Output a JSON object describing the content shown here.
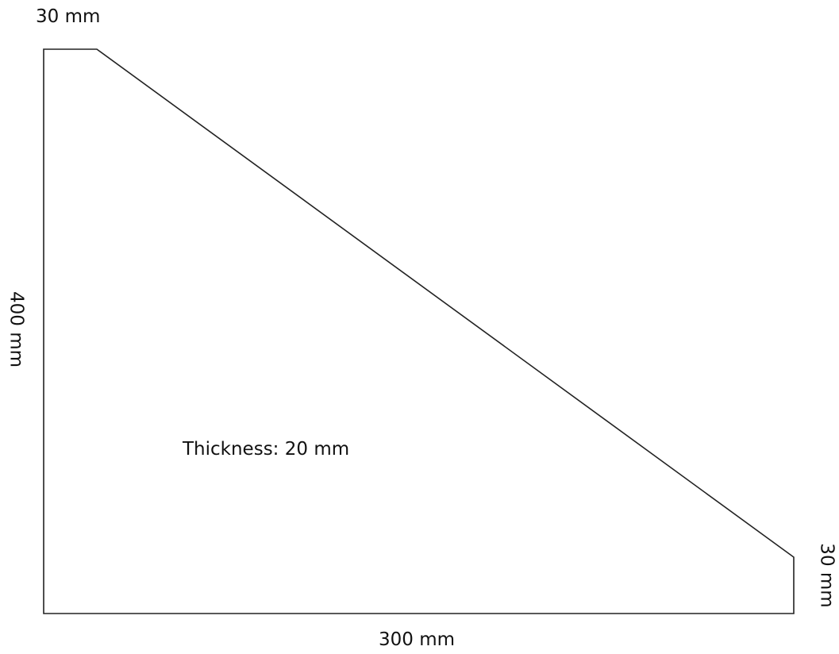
{
  "labels": {
    "top_width": "30 mm",
    "height": "400 mm",
    "base_width": "300 mm",
    "right_height": "30 mm",
    "thickness": "Thickness: 20 mm"
  },
  "colors": {
    "outline": "#222222",
    "text": "#111111",
    "background": "#ffffff"
  }
}
